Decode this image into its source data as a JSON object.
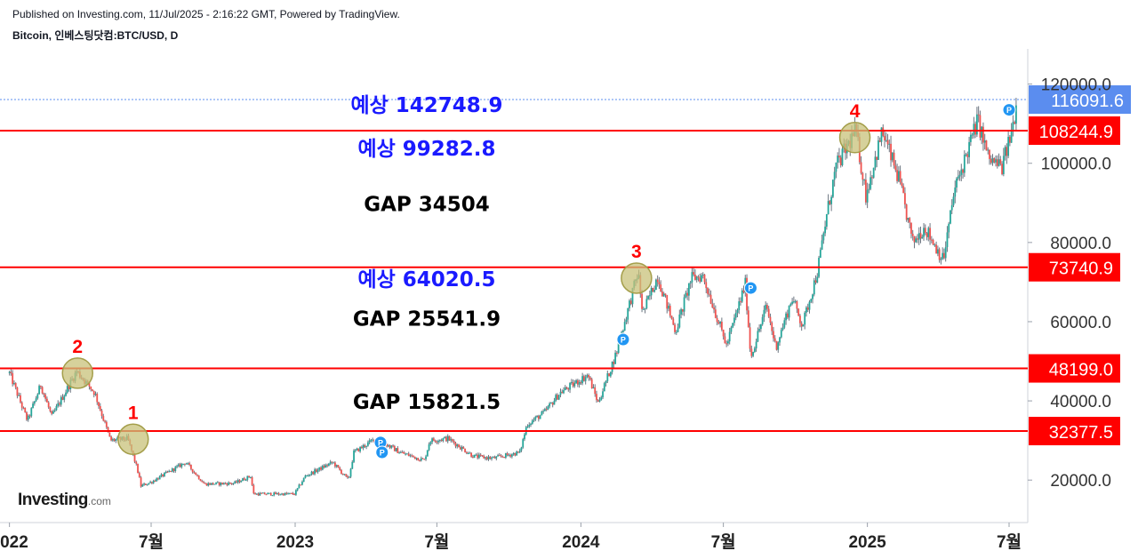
{
  "header": {
    "published": "Published on Investing.com, 11/Jul/2025 - 2:16:22 GMT, Powered by TradingView.",
    "symbol": "Bitcoin, 인베스팅닷컴:BTC/USD, D"
  },
  "logo": {
    "brand": "Investing",
    "suffix": ".com"
  },
  "colors": {
    "up": "#26a69a",
    "down": "#ef5350",
    "wick": "#6b7480",
    "level_line": "#ff0000",
    "price_badge": "#5b8def",
    "forecast_text": "#1a1aff",
    "circle_fill": "#c8c27a",
    "marker": "#2196f3"
  },
  "chart_data": {
    "type": "candlestick",
    "title": "Bitcoin, 인베스팅닷컴:BTC/USD, D",
    "x_range": [
      "2022-01-01",
      "2025-07-11"
    ],
    "ylim": [
      6000,
      125000
    ],
    "y_ticks": [
      "120000.0",
      "100000.0",
      "80000.0",
      "60000.0",
      "40000.0",
      "20000.0"
    ],
    "y_tick_values": [
      120000,
      100000,
      80000,
      60000,
      40000,
      20000
    ],
    "x_ticks": [
      {
        "label": "2022",
        "date": "2022-01-01"
      },
      {
        "label": "7월",
        "date": "2022-07-01"
      },
      {
        "label": "2023",
        "date": "2023-01-01"
      },
      {
        "label": "7월",
        "date": "2023-07-01"
      },
      {
        "label": "2024",
        "date": "2024-01-01"
      },
      {
        "label": "7월",
        "date": "2024-07-01"
      },
      {
        "label": "2025",
        "date": "2025-01-01"
      },
      {
        "label": "7월",
        "date": "2025-07-01"
      }
    ],
    "price_path": [
      [
        "2022-01-01",
        47000
      ],
      [
        "2022-01-24",
        35000
      ],
      [
        "2022-02-10",
        44000
      ],
      [
        "2022-02-24",
        36000
      ],
      [
        "2022-03-28",
        47500
      ],
      [
        "2022-04-20",
        42000
      ],
      [
        "2022-05-10",
        30000
      ],
      [
        "2022-06-01",
        30500
      ],
      [
        "2022-06-13",
        23000
      ],
      [
        "2022-06-18",
        18500
      ],
      [
        "2022-07-01",
        19500
      ],
      [
        "2022-08-14",
        24500
      ],
      [
        "2022-09-07",
        19000
      ],
      [
        "2022-10-15",
        19200
      ],
      [
        "2022-11-05",
        21000
      ],
      [
        "2022-11-09",
        16500
      ],
      [
        "2022-12-31",
        16500
      ],
      [
        "2023-01-14",
        21000
      ],
      [
        "2023-02-18",
        24500
      ],
      [
        "2023-03-10",
        20000
      ],
      [
        "2023-03-17",
        27000
      ],
      [
        "2023-04-14",
        30500
      ],
      [
        "2023-05-15",
        27000
      ],
      [
        "2023-06-15",
        25000
      ],
      [
        "2023-06-22",
        30000
      ],
      [
        "2023-07-15",
        30500
      ],
      [
        "2023-08-17",
        26000
      ],
      [
        "2023-09-11",
        25500
      ],
      [
        "2023-10-15",
        27000
      ],
      [
        "2023-10-24",
        34000
      ],
      [
        "2023-11-15",
        37000
      ],
      [
        "2023-12-05",
        42000
      ],
      [
        "2024-01-10",
        46500
      ],
      [
        "2024-01-23",
        39500
      ],
      [
        "2024-02-15",
        52000
      ],
      [
        "2024-03-14",
        72500
      ],
      [
        "2024-03-20",
        62000
      ],
      [
        "2024-04-08",
        71500
      ],
      [
        "2024-05-01",
        57500
      ],
      [
        "2024-05-21",
        71000
      ],
      [
        "2024-06-05",
        71500
      ],
      [
        "2024-07-05",
        54000
      ],
      [
        "2024-07-29",
        69500
      ],
      [
        "2024-08-05",
        51000
      ],
      [
        "2024-08-25",
        64000
      ],
      [
        "2024-09-06",
        53500
      ],
      [
        "2024-09-27",
        66000
      ],
      [
        "2024-10-10",
        59000
      ],
      [
        "2024-10-29",
        72500
      ],
      [
        "2024-11-11",
        88000
      ],
      [
        "2024-11-22",
        99000
      ],
      [
        "2024-12-17",
        108200
      ],
      [
        "2024-12-30",
        92000
      ],
      [
        "2025-01-20",
        108000
      ],
      [
        "2025-02-10",
        96000
      ],
      [
        "2025-02-28",
        80000
      ],
      [
        "2025-03-15",
        84000
      ],
      [
        "2025-04-08",
        75500
      ],
      [
        "2025-04-22",
        93000
      ],
      [
        "2025-05-22",
        111000
      ],
      [
        "2025-06-05",
        101000
      ],
      [
        "2025-06-22",
        99000
      ],
      [
        "2025-07-05",
        108500
      ],
      [
        "2025-07-11",
        116091
      ]
    ],
    "levels": [
      {
        "value": 108244.9,
        "label": "108244.9"
      },
      {
        "value": 73740.9,
        "label": "73740.9"
      },
      {
        "value": 48199.0,
        "label": "48199.0"
      },
      {
        "value": 32377.5,
        "label": "32377.5"
      }
    ],
    "current_price": {
      "value": 116091.6,
      "label": "116091.6"
    },
    "points": [
      {
        "label": "1",
        "date": "2022-06-08",
        "value": 30300
      },
      {
        "label": "2",
        "date": "2022-03-29",
        "value": 47000
      },
      {
        "label": "3",
        "date": "2024-03-12",
        "value": 71000
      },
      {
        "label": "4",
        "date": "2024-12-16",
        "value": 106500
      }
    ],
    "annotations": [
      {
        "text": "예상 142748.9",
        "kind": "forecast",
        "anchor_value": 115000
      },
      {
        "text": "예상 99282.8",
        "kind": "forecast",
        "anchor_value": 104000
      },
      {
        "text": "GAP 34504",
        "kind": "gap",
        "anchor_value": 90000
      },
      {
        "text": "예상 64020.5",
        "kind": "forecast",
        "anchor_value": 71000
      },
      {
        "text": "GAP 25541.9",
        "kind": "gap",
        "anchor_value": 61000
      },
      {
        "text": "GAP 15821.5",
        "kind": "gap",
        "anchor_value": 40000
      }
    ],
    "markers": [
      {
        "label": "P",
        "date": "2023-04-20",
        "value": 29500
      },
      {
        "label": "P",
        "date": "2023-04-22",
        "value": 27000
      },
      {
        "label": "P",
        "date": "2024-02-24",
        "value": 55500
      },
      {
        "label": "P",
        "date": "2024-08-05",
        "value": 68500
      },
      {
        "label": "P",
        "date": "2025-07-01",
        "value": 113500
      }
    ]
  }
}
